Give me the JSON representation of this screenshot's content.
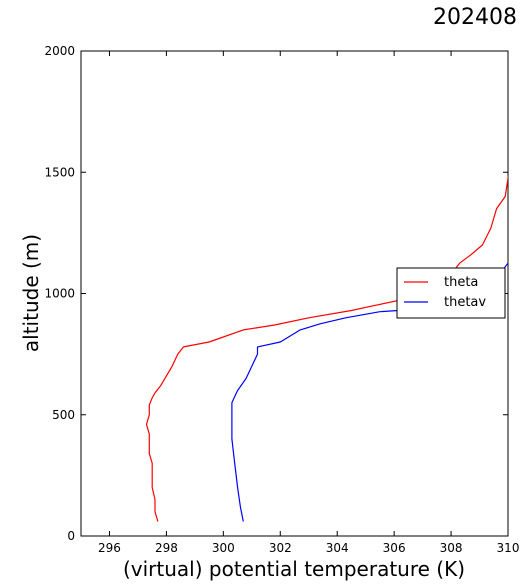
{
  "chart_data": {
    "type": "line",
    "title": "202408",
    "xlabel": "(virtual) potential temperature (K)",
    "ylabel": "altitude (m)",
    "xlim": [
      295,
      310
    ],
    "ylim": [
      0,
      2000
    ],
    "xticks": [
      "296",
      "298",
      "300",
      "302",
      "304",
      "306",
      "308",
      "310"
    ],
    "yticks": [
      "0",
      "500",
      "1000",
      "1500",
      "2000"
    ],
    "grid": false,
    "legend_position": "right",
    "series": [
      {
        "name": "theta",
        "color": "#ff0000",
        "points": [
          [
            297.7,
            60
          ],
          [
            297.6,
            100
          ],
          [
            297.6,
            150
          ],
          [
            297.5,
            200
          ],
          [
            297.5,
            250
          ],
          [
            297.5,
            300
          ],
          [
            297.4,
            340
          ],
          [
            297.4,
            380
          ],
          [
            297.4,
            420
          ],
          [
            297.3,
            460
          ],
          [
            297.4,
            500
          ],
          [
            297.4,
            540
          ],
          [
            297.5,
            570
          ],
          [
            297.6,
            590
          ],
          [
            297.8,
            620
          ],
          [
            298.0,
            660
          ],
          [
            298.2,
            700
          ],
          [
            298.4,
            750
          ],
          [
            298.6,
            780
          ],
          [
            299.5,
            800
          ],
          [
            300.7,
            850
          ],
          [
            301.8,
            870
          ],
          [
            303.0,
            900
          ],
          [
            304.5,
            930
          ],
          [
            305.3,
            950
          ],
          [
            306.3,
            975
          ],
          [
            307.1,
            995
          ],
          [
            307.8,
            1050
          ],
          [
            308.3,
            1125
          ],
          [
            308.7,
            1160
          ],
          [
            309.1,
            1200
          ],
          [
            309.4,
            1270
          ],
          [
            309.6,
            1350
          ],
          [
            309.9,
            1400
          ],
          [
            310.0,
            1475
          ],
          [
            310.1,
            1550
          ],
          [
            310.1,
            1600
          ]
        ]
      },
      {
        "name": "thetav",
        "color": "#0000ff",
        "points": [
          [
            300.7,
            60
          ],
          [
            300.6,
            120
          ],
          [
            300.5,
            200
          ],
          [
            300.4,
            300
          ],
          [
            300.3,
            400
          ],
          [
            300.3,
            480
          ],
          [
            300.3,
            550
          ],
          [
            300.5,
            600
          ],
          [
            300.8,
            650
          ],
          [
            301.0,
            700
          ],
          [
            301.2,
            750
          ],
          [
            301.2,
            780
          ],
          [
            302.0,
            800
          ],
          [
            302.7,
            850
          ],
          [
            303.4,
            875
          ],
          [
            304.3,
            900
          ],
          [
            305.5,
            925
          ],
          [
            307.4,
            940
          ],
          [
            308.5,
            960
          ],
          [
            309.2,
            1000
          ],
          [
            309.7,
            1080
          ],
          [
            310.1,
            1140
          ],
          [
            310.5,
            1190
          ]
        ]
      }
    ]
  }
}
